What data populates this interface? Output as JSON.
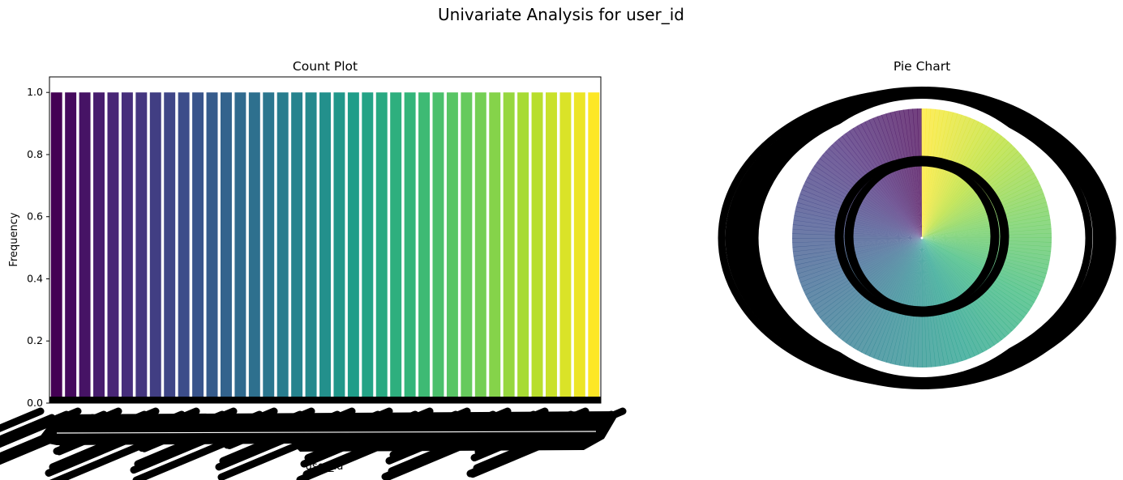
{
  "figure": {
    "title": "Univariate Analysis for user_id"
  },
  "colors": {
    "palette": "viridis",
    "background": "#ffffff",
    "axes": "#000000"
  },
  "chart_data": [
    {
      "type": "bar",
      "title": "Count Plot",
      "xlabel": "user_id",
      "ylabel": "Frequency",
      "ylim": [
        0,
        1.05
      ],
      "yticks": [
        0.0,
        0.2,
        0.4,
        0.6,
        0.8,
        1.0
      ],
      "ytick_labels": [
        "0.0",
        "0.2",
        "0.4",
        "0.6",
        "0.8",
        "1.0"
      ],
      "bar_count_visible": 39,
      "values": [
        1,
        1,
        1,
        1,
        1,
        1,
        1,
        1,
        1,
        1,
        1,
        1,
        1,
        1,
        1,
        1,
        1,
        1,
        1,
        1,
        1,
        1,
        1,
        1,
        1,
        1,
        1,
        1,
        1,
        1,
        1,
        1,
        1,
        1,
        1,
        1,
        1,
        1,
        1
      ],
      "xtick_labels_note": "illegible overlapping black labels",
      "grid": false
    },
    {
      "type": "pie",
      "title": "Pie Chart",
      "slices": "many equal slices (one per user_id), viridis colors",
      "labels_note": "illegible overlapping black labels around the pie",
      "hole": "inner ring of percentage labels (illegible)"
    }
  ]
}
